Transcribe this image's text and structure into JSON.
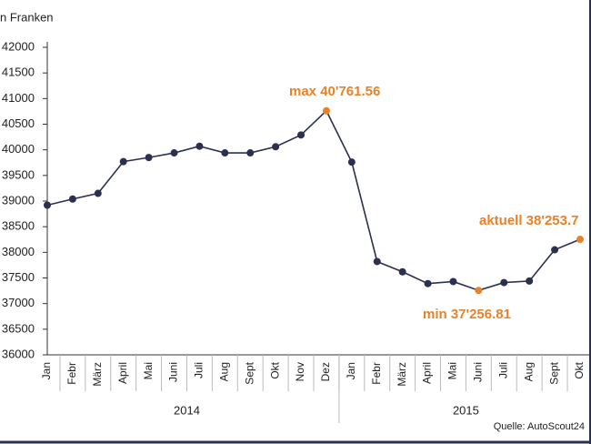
{
  "chart_data": {
    "type": "line",
    "y_label": "n Franken",
    "categories": [
      "Jan",
      "Febr",
      "März",
      "April",
      "Mai",
      "Juni",
      "Juli",
      "Aug",
      "Sept",
      "Okt",
      "Nov",
      "Dez",
      "Jan",
      "Febr",
      "März",
      "April",
      "Mai",
      "Juni",
      "Juli",
      "Aug",
      "Sept",
      "Okt"
    ],
    "years": [
      "2014",
      "2015"
    ],
    "values": [
      38920,
      39040,
      39150,
      39770,
      39850,
      39940,
      40070,
      39940,
      39940,
      40060,
      40290,
      40761.56,
      39760,
      37820,
      37620,
      37390,
      37430,
      37256.81,
      37410,
      37440,
      38050,
      38253.7
    ],
    "color": "#2b3050",
    "point_colors": [
      "#2b3050",
      "#2b3050",
      "#2b3050",
      "#2b3050",
      "#2b3050",
      "#2b3050",
      "#2b3050",
      "#2b3050",
      "#2b3050",
      "#2b3050",
      "#2b3050",
      "#e8822a",
      "#2b3050",
      "#2b3050",
      "#2b3050",
      "#2b3050",
      "#2b3050",
      "#e8822a",
      "#2b3050",
      "#2b3050",
      "#2b3050",
      "#e8822a"
    ],
    "annotations": [
      "max 40'761.56",
      "min 37'256.81",
      "aktuell 38'253.7"
    ],
    "source": "Quelle: AutoScout24",
    "ylim": [
      36000,
      42000
    ],
    "yticks": [
      36000,
      36500,
      37000,
      37500,
      38000,
      38500,
      39000,
      39500,
      40000,
      40500,
      41000,
      41500,
      42000
    ]
  }
}
